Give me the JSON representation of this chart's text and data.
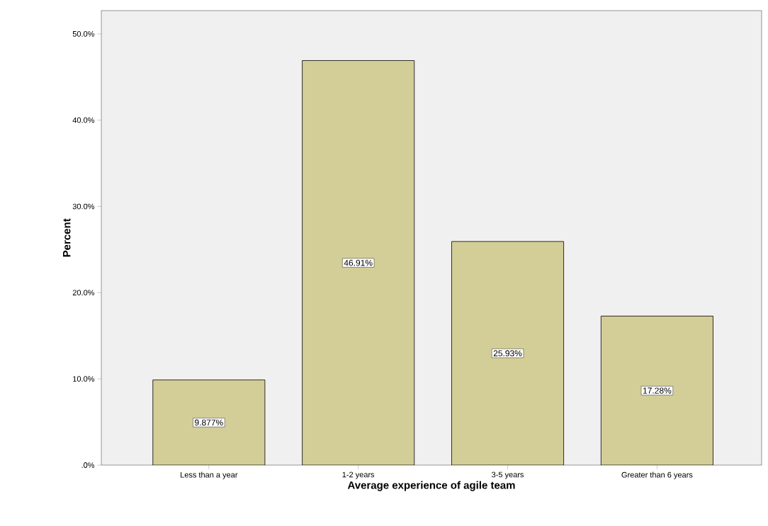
{
  "chart_data": {
    "type": "bar",
    "xlabel": "Average experience of agile team",
    "ylabel": "Percent",
    "categories": [
      "Less than a year",
      "1-2 years",
      "3-5 years",
      "Greater than 6 years"
    ],
    "values": [
      9.877,
      46.91,
      25.93,
      17.28
    ],
    "value_labels": [
      "9.877%",
      "46.91%",
      "25.93%",
      "17.28%"
    ],
    "color": "#d3ce97",
    "ylim": [
      0,
      52.7
    ],
    "yticks": [
      {
        "value": 0,
        "label": ".0%"
      },
      {
        "value": 10,
        "label": "10.0%"
      },
      {
        "value": 20,
        "label": "20.0%"
      },
      {
        "value": 30,
        "label": "30.0%"
      },
      {
        "value": 40,
        "label": "40.0%"
      },
      {
        "value": 50,
        "label": "50.0%"
      }
    ],
    "grid": false
  }
}
